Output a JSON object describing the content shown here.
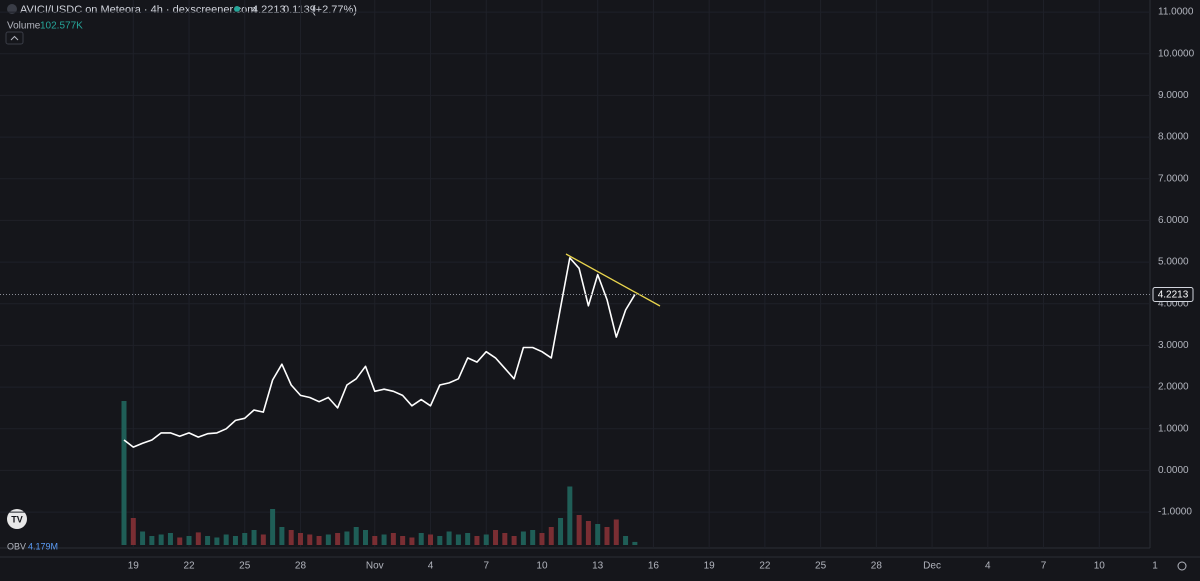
{
  "chart_data": {
    "type": "line",
    "title": "AVICI/USDC on Meteora · 4h · dexscreener.com",
    "last_price": 4.2213,
    "change": "0.1139",
    "change_pct": "(+2.77%)",
    "color": "#ffffff",
    "grid": true,
    "categories": [
      null,
      "19",
      null,
      null,
      null,
      null,
      null,
      "22",
      null,
      null,
      null,
      null,
      null,
      "25",
      null,
      null,
      null,
      null,
      null,
      "28",
      null,
      null,
      null,
      null,
      null,
      null,
      null,
      "Nov",
      null,
      null,
      null,
      null,
      null,
      "4",
      null,
      null,
      null,
      null,
      null,
      "7",
      null,
      null,
      null,
      null,
      null,
      "10",
      null,
      null,
      null,
      null,
      null,
      "13",
      null,
      null,
      null,
      null,
      null,
      "16",
      null,
      null,
      null,
      null,
      null,
      "19",
      null,
      null,
      null,
      null,
      null,
      "22",
      null,
      null,
      null,
      null,
      null,
      "25",
      null,
      null,
      null,
      null,
      null,
      "28",
      null,
      null,
      null,
      null,
      null,
      "Dec",
      null,
      null,
      null,
      null,
      null,
      "4",
      null,
      null,
      null,
      null,
      null,
      "7",
      null,
      null,
      null,
      null,
      null,
      "10",
      null,
      null,
      null,
      null,
      null,
      "1"
    ],
    "values": [
      0.73,
      0.56,
      0.65,
      0.73,
      0.9,
      0.9,
      0.82,
      0.9,
      0.8,
      0.88,
      0.9,
      1.0,
      1.2,
      1.25,
      1.45,
      1.4,
      2.17,
      2.55,
      2.05,
      1.8,
      1.75,
      1.65,
      1.75,
      1.5,
      2.05,
      2.2,
      2.5,
      1.9,
      1.95,
      1.9,
      1.8,
      1.55,
      1.7,
      1.55,
      2.05,
      2.1,
      2.2,
      2.7,
      2.6,
      2.85,
      2.7,
      2.45,
      2.2,
      2.95,
      2.95,
      2.85,
      2.7,
      3.9,
      5.1,
      4.85,
      3.95,
      4.7,
      4.1,
      3.2,
      3.85,
      4.22,
      null,
      null,
      null,
      null,
      null,
      null,
      null,
      null,
      null,
      null,
      null,
      null,
      null,
      null,
      null,
      null,
      null,
      null,
      null,
      null,
      null,
      null,
      null,
      null,
      null,
      null,
      null,
      null,
      null,
      null,
      null,
      null,
      null,
      null,
      null,
      null,
      null,
      null,
      null,
      null,
      null,
      null,
      null,
      null,
      null,
      null,
      null,
      null,
      null,
      null,
      null,
      null,
      null,
      null,
      null,
      null
    ],
    "ylim": [
      -1.79,
      11.29
    ],
    "yticks": [
      {
        "value": 11,
        "label": "11.0000"
      },
      {
        "value": 10,
        "label": "10.0000"
      },
      {
        "value": 9,
        "label": "9.0000"
      },
      {
        "value": 8,
        "label": "8.0000"
      },
      {
        "value": 7,
        "label": "7.0000"
      },
      {
        "value": 6,
        "label": "6.0000"
      },
      {
        "value": 5,
        "label": "5.0000"
      },
      {
        "value": 4,
        "label": "4.0000"
      },
      {
        "value": 3,
        "label": "3.0000"
      },
      {
        "value": 2,
        "label": "2.0000"
      },
      {
        "value": 1,
        "label": "1.0000"
      },
      {
        "value": 0,
        "label": "0.0000"
      },
      {
        "value": -1,
        "label": "-1.0000"
      }
    ],
    "volume": {
      "name": "Volume",
      "last_label": "102.577K",
      "up_color": "#1f5e57",
      "down_color": "#7a2e33",
      "ylim": [
        0,
        5000
      ],
      "values": [
        4800,
        900,
        450,
        300,
        350,
        400,
        250,
        300,
        420,
        300,
        250,
        350,
        300,
        400,
        500,
        350,
        1200,
        600,
        500,
        400,
        350,
        300,
        350,
        400,
        450,
        600,
        500,
        300,
        350,
        400,
        300,
        250,
        400,
        350,
        300,
        450,
        350,
        400,
        300,
        350,
        500,
        400,
        300,
        450,
        500,
        400,
        600,
        900,
        1950,
        1000,
        800,
        700,
        600,
        850,
        300,
        102.577,
        null,
        null,
        null,
        null,
        null,
        null,
        null,
        null,
        null,
        null,
        null,
        null,
        null,
        null,
        null,
        null,
        null,
        null,
        null,
        null,
        null,
        null,
        null,
        null,
        null,
        null,
        null,
        null,
        null,
        null,
        null,
        null,
        null,
        null,
        null,
        null,
        null,
        null,
        null,
        null,
        null,
        null,
        null,
        null,
        null,
        null,
        null,
        null,
        null,
        null,
        null,
        null,
        null,
        null,
        null,
        null
      ]
    },
    "obv": {
      "name": "OBV",
      "value_label": "4.179M"
    }
  }
}
